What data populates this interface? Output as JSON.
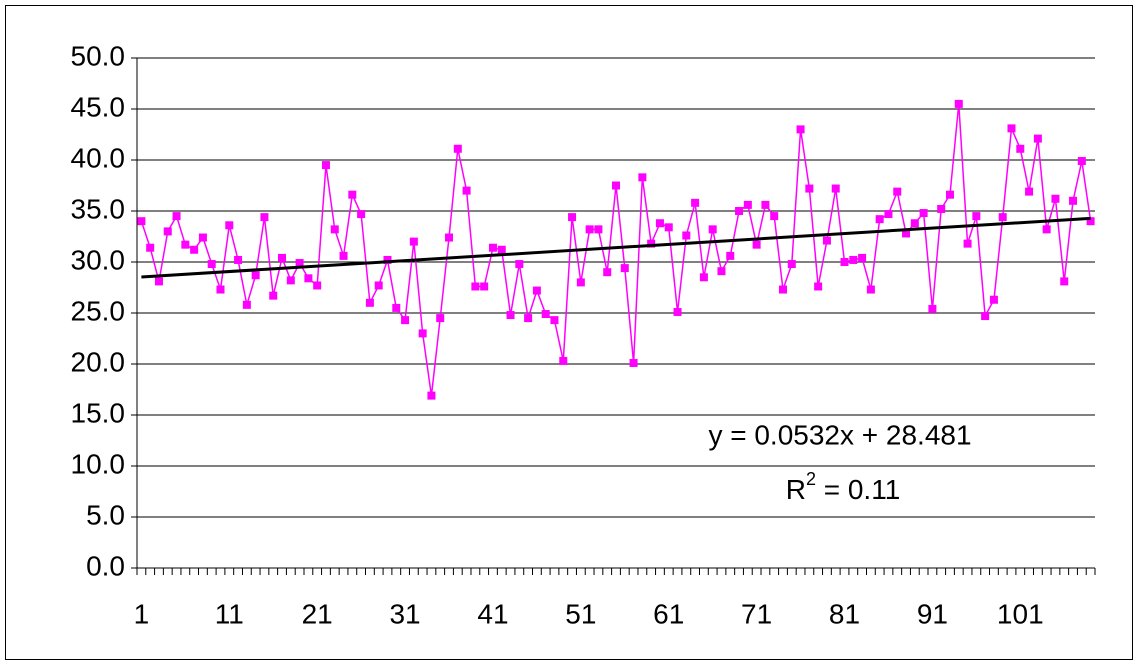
{
  "chart_data": {
    "type": "line",
    "categories": [
      "1",
      null,
      null,
      null,
      null,
      null,
      null,
      null,
      null,
      null,
      "11",
      null,
      null,
      null,
      null,
      null,
      null,
      null,
      null,
      null,
      "21",
      null,
      null,
      null,
      null,
      null,
      null,
      null,
      null,
      null,
      "31",
      null,
      null,
      null,
      null,
      null,
      null,
      null,
      null,
      null,
      "41",
      null,
      null,
      null,
      null,
      null,
      null,
      null,
      null,
      null,
      "51",
      null,
      null,
      null,
      null,
      null,
      null,
      null,
      null,
      null,
      "61",
      null,
      null,
      null,
      null,
      null,
      null,
      null,
      null,
      null,
      "71",
      null,
      null,
      null,
      null,
      null,
      null,
      null,
      null,
      null,
      "81",
      null,
      null,
      null,
      null,
      null,
      null,
      null,
      null,
      null,
      "91",
      null,
      null,
      null,
      null,
      null,
      null,
      null,
      null,
      null,
      "101",
      null,
      null,
      null,
      null,
      null,
      null,
      null,
      null
    ],
    "values": [
      34.0,
      31.4,
      28.1,
      33.0,
      34.5,
      31.7,
      31.2,
      32.4,
      29.8,
      27.3,
      33.6,
      30.2,
      25.8,
      28.7,
      34.4,
      26.7,
      30.4,
      28.2,
      29.9,
      28.4,
      27.7,
      39.5,
      33.2,
      30.6,
      36.6,
      34.7,
      26.0,
      27.7,
      30.2,
      25.5,
      24.3,
      32.0,
      23.0,
      16.9,
      24.5,
      32.4,
      41.1,
      37.0,
      27.6,
      27.6,
      31.4,
      31.2,
      24.8,
      29.8,
      24.5,
      27.2,
      24.9,
      24.3,
      20.3,
      34.4,
      28.0,
      33.2,
      33.2,
      29.0,
      37.5,
      29.4,
      20.1,
      38.3,
      31.8,
      33.8,
      33.4,
      25.1,
      32.6,
      35.8,
      28.5,
      33.2,
      29.1,
      30.6,
      35.0,
      35.6,
      31.7,
      35.6,
      34.5,
      27.3,
      29.8,
      43.0,
      37.2,
      27.6,
      32.1,
      37.2,
      30.0,
      30.2,
      30.4,
      27.3,
      34.2,
      34.7,
      36.9,
      32.8,
      33.8,
      34.8,
      25.4,
      35.2,
      36.6,
      45.5,
      31.8,
      34.5,
      24.7,
      26.3,
      34.4,
      43.1,
      41.1,
      36.9,
      42.1,
      33.2,
      36.2,
      28.1,
      36.0,
      39.9,
      34.0
    ],
    "color": "#ff00ff",
    "ylim": [
      0,
      50
    ],
    "yticks": [
      {
        "value": 0,
        "label": "0.0"
      },
      {
        "value": 5,
        "label": "5.0"
      },
      {
        "value": 10,
        "label": "10.0"
      },
      {
        "value": 15,
        "label": "15.0"
      },
      {
        "value": 20,
        "label": "20.0"
      },
      {
        "value": 25,
        "label": "25.0"
      },
      {
        "value": 30,
        "label": "30.0"
      },
      {
        "value": 35,
        "label": "35.0"
      },
      {
        "value": 40,
        "label": "40.0"
      },
      {
        "value": 45,
        "label": "45.0"
      },
      {
        "value": 50,
        "label": "50.0"
      }
    ],
    "grid": true,
    "trendline": {
      "slope": 0.0532,
      "intercept": 28.481,
      "color": "#000000",
      "equation": "y = 0.0532x + 28.481",
      "r2": {
        "base": "R",
        "sup": "2",
        "rest": " = 0.11"
      }
    }
  }
}
